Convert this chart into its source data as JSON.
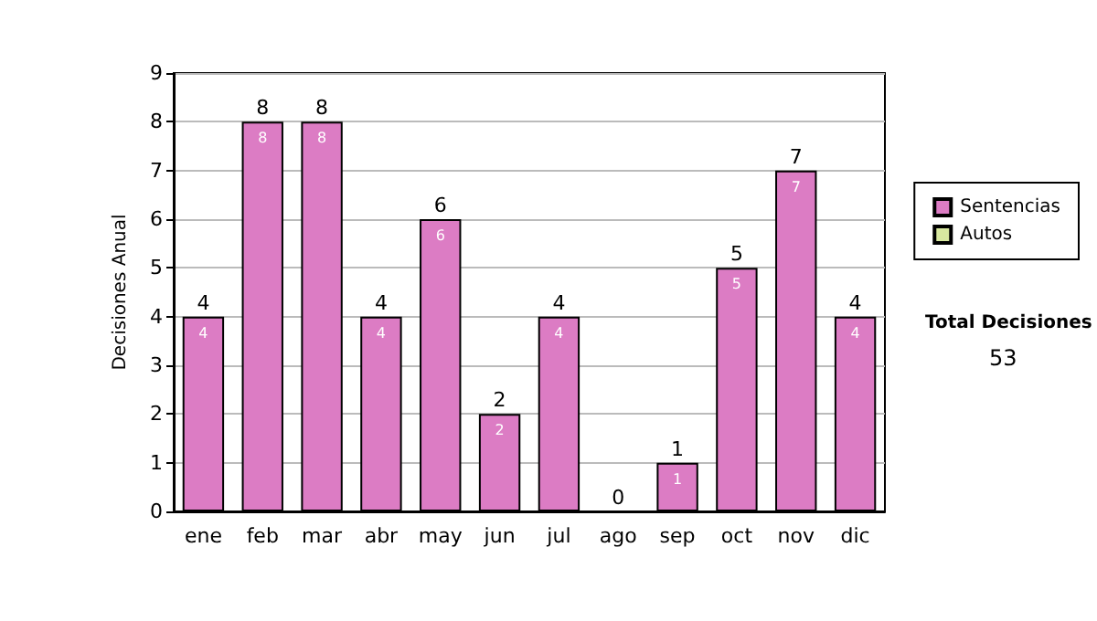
{
  "chart_data": {
    "type": "bar",
    "stacked": true,
    "ylabel": "Decisiones Anual",
    "categories": [
      "ene",
      "feb",
      "mar",
      "abr",
      "may",
      "jun",
      "jul",
      "ago",
      "sep",
      "oct",
      "nov",
      "dic"
    ],
    "series": [
      {
        "name": "Sentencias",
        "color": "#dc7cc4",
        "values": [
          4,
          8,
          8,
          4,
          6,
          2,
          4,
          0,
          1,
          5,
          7,
          4
        ],
        "value_labels": [
          "4",
          "8",
          "8",
          "4",
          "6",
          "2",
          "4",
          null,
          "1",
          "5",
          "7",
          "4"
        ]
      },
      {
        "name": "Autos",
        "color": "#d8e8a0",
        "values": [
          0,
          0,
          0,
          0,
          0,
          0,
          0,
          0,
          0,
          0,
          0,
          0
        ]
      }
    ],
    "totals": [
      "4",
      "8",
      "8",
      "4",
      "6",
      "2",
      "4",
      "0",
      "1",
      "5",
      "7",
      "4"
    ],
    "ylim": [
      0,
      9
    ],
    "yticks": [
      0,
      1,
      2,
      3,
      4,
      5,
      6,
      7,
      8,
      9
    ],
    "grid": "y",
    "legend": "right",
    "annotations": [
      "Total Decisiones",
      "53"
    ]
  }
}
